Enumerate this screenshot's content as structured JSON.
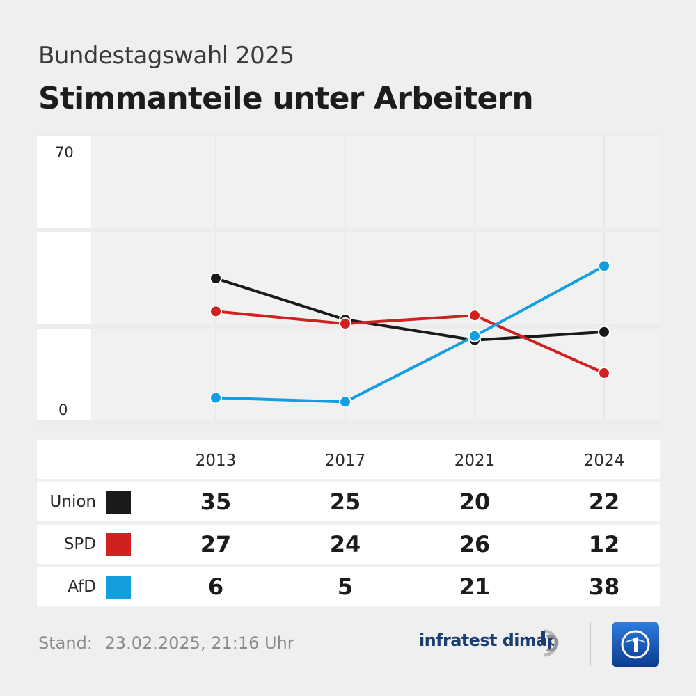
{
  "header": {
    "subtitle": "Bundestagswahl 2025",
    "title": "Stimmanteile unter Arbeitern"
  },
  "chart_data": {
    "type": "line",
    "title": "Stimmanteile unter Arbeitern",
    "x": [
      "2013",
      "2017",
      "2021",
      "2024"
    ],
    "ylim": [
      0,
      70
    ],
    "y_tick_labels": [
      "70",
      "0"
    ],
    "grid": true,
    "series": [
      {
        "name": "Union",
        "color": "#1a1a1a",
        "values": [
          35,
          25,
          20,
          22
        ]
      },
      {
        "name": "SPD",
        "color": "#d0201f",
        "values": [
          27,
          24,
          26,
          12
        ]
      },
      {
        "name": "AfD",
        "color": "#139fdf",
        "values": [
          6,
          5,
          21,
          38
        ]
      }
    ]
  },
  "footer": {
    "stand_label": "Stand:",
    "stand_value": "23.02.2025, 21:16 Uhr",
    "brand": "infratest dimap"
  }
}
